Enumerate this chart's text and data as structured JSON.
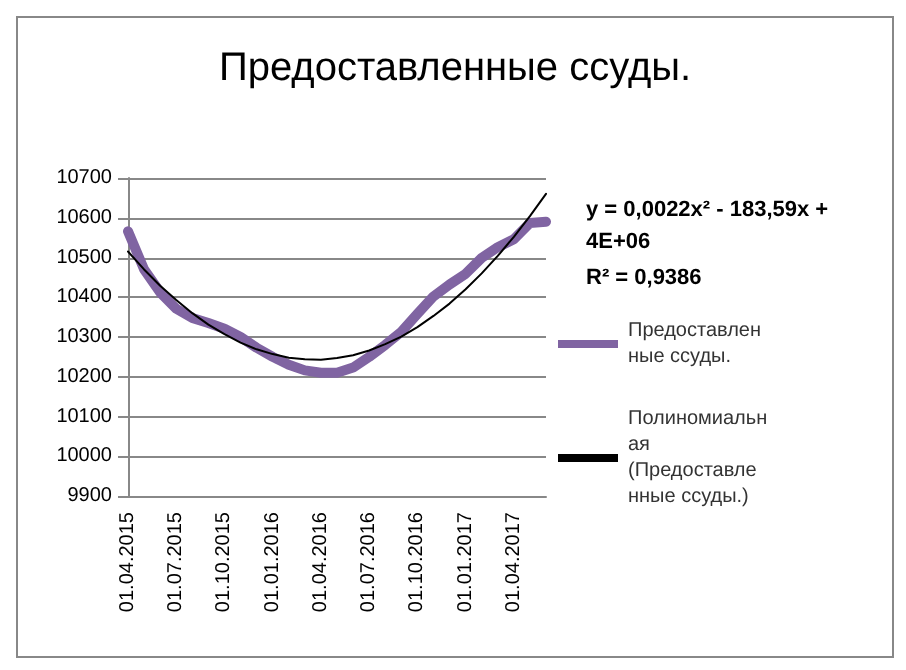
{
  "chart_data": {
    "type": "line",
    "title": "Предоставленные ссуды.",
    "categories": [
      "01.04.2015",
      null,
      null,
      "01.07.2015",
      null,
      null,
      "01.10.2015",
      null,
      null,
      "01.01.2016",
      null,
      null,
      "01.04.2016",
      null,
      null,
      "01.07.2016",
      null,
      null,
      "01.10.2016",
      null,
      null,
      "01.01.2017",
      null,
      null,
      "01.04.2017",
      null,
      null
    ],
    "series": [
      {
        "name": "Предоставленные ссуды.",
        "color": "#8064a2",
        "values": [
          10566,
          10470,
          10412,
          10371,
          10348,
          10335,
          10321,
          10300,
          10273,
          10250,
          10230,
          10216,
          10210,
          10210,
          10223,
          10250,
          10280,
          10313,
          10358,
          10402,
          10432,
          10459,
          10499,
          10526,
          10546,
          10587,
          10590
        ]
      },
      {
        "name": "Полиномиальная (Предоставленные ссуды.)",
        "color": "#000000",
        "values": [
          10515,
          10470,
          10429,
          10393,
          10360,
          10331,
          10307,
          10286,
          10269,
          10257,
          10248,
          10244,
          10243,
          10247,
          10254,
          10266,
          10282,
          10301,
          10325,
          10353,
          10384,
          10420,
          10460,
          10504,
          10552,
          10604,
          10660
        ]
      }
    ],
    "ylim": [
      9900,
      10700
    ],
    "yticks": [
      9900,
      10000,
      10100,
      10200,
      10300,
      10400,
      10500,
      10600,
      10700
    ],
    "grid": "y",
    "legend": "right",
    "marker": "none",
    "line_style": "solid",
    "annotations": [
      "y = 0,0022x² - 183,59x + 4E+06",
      "R² = 0,9386"
    ]
  }
}
